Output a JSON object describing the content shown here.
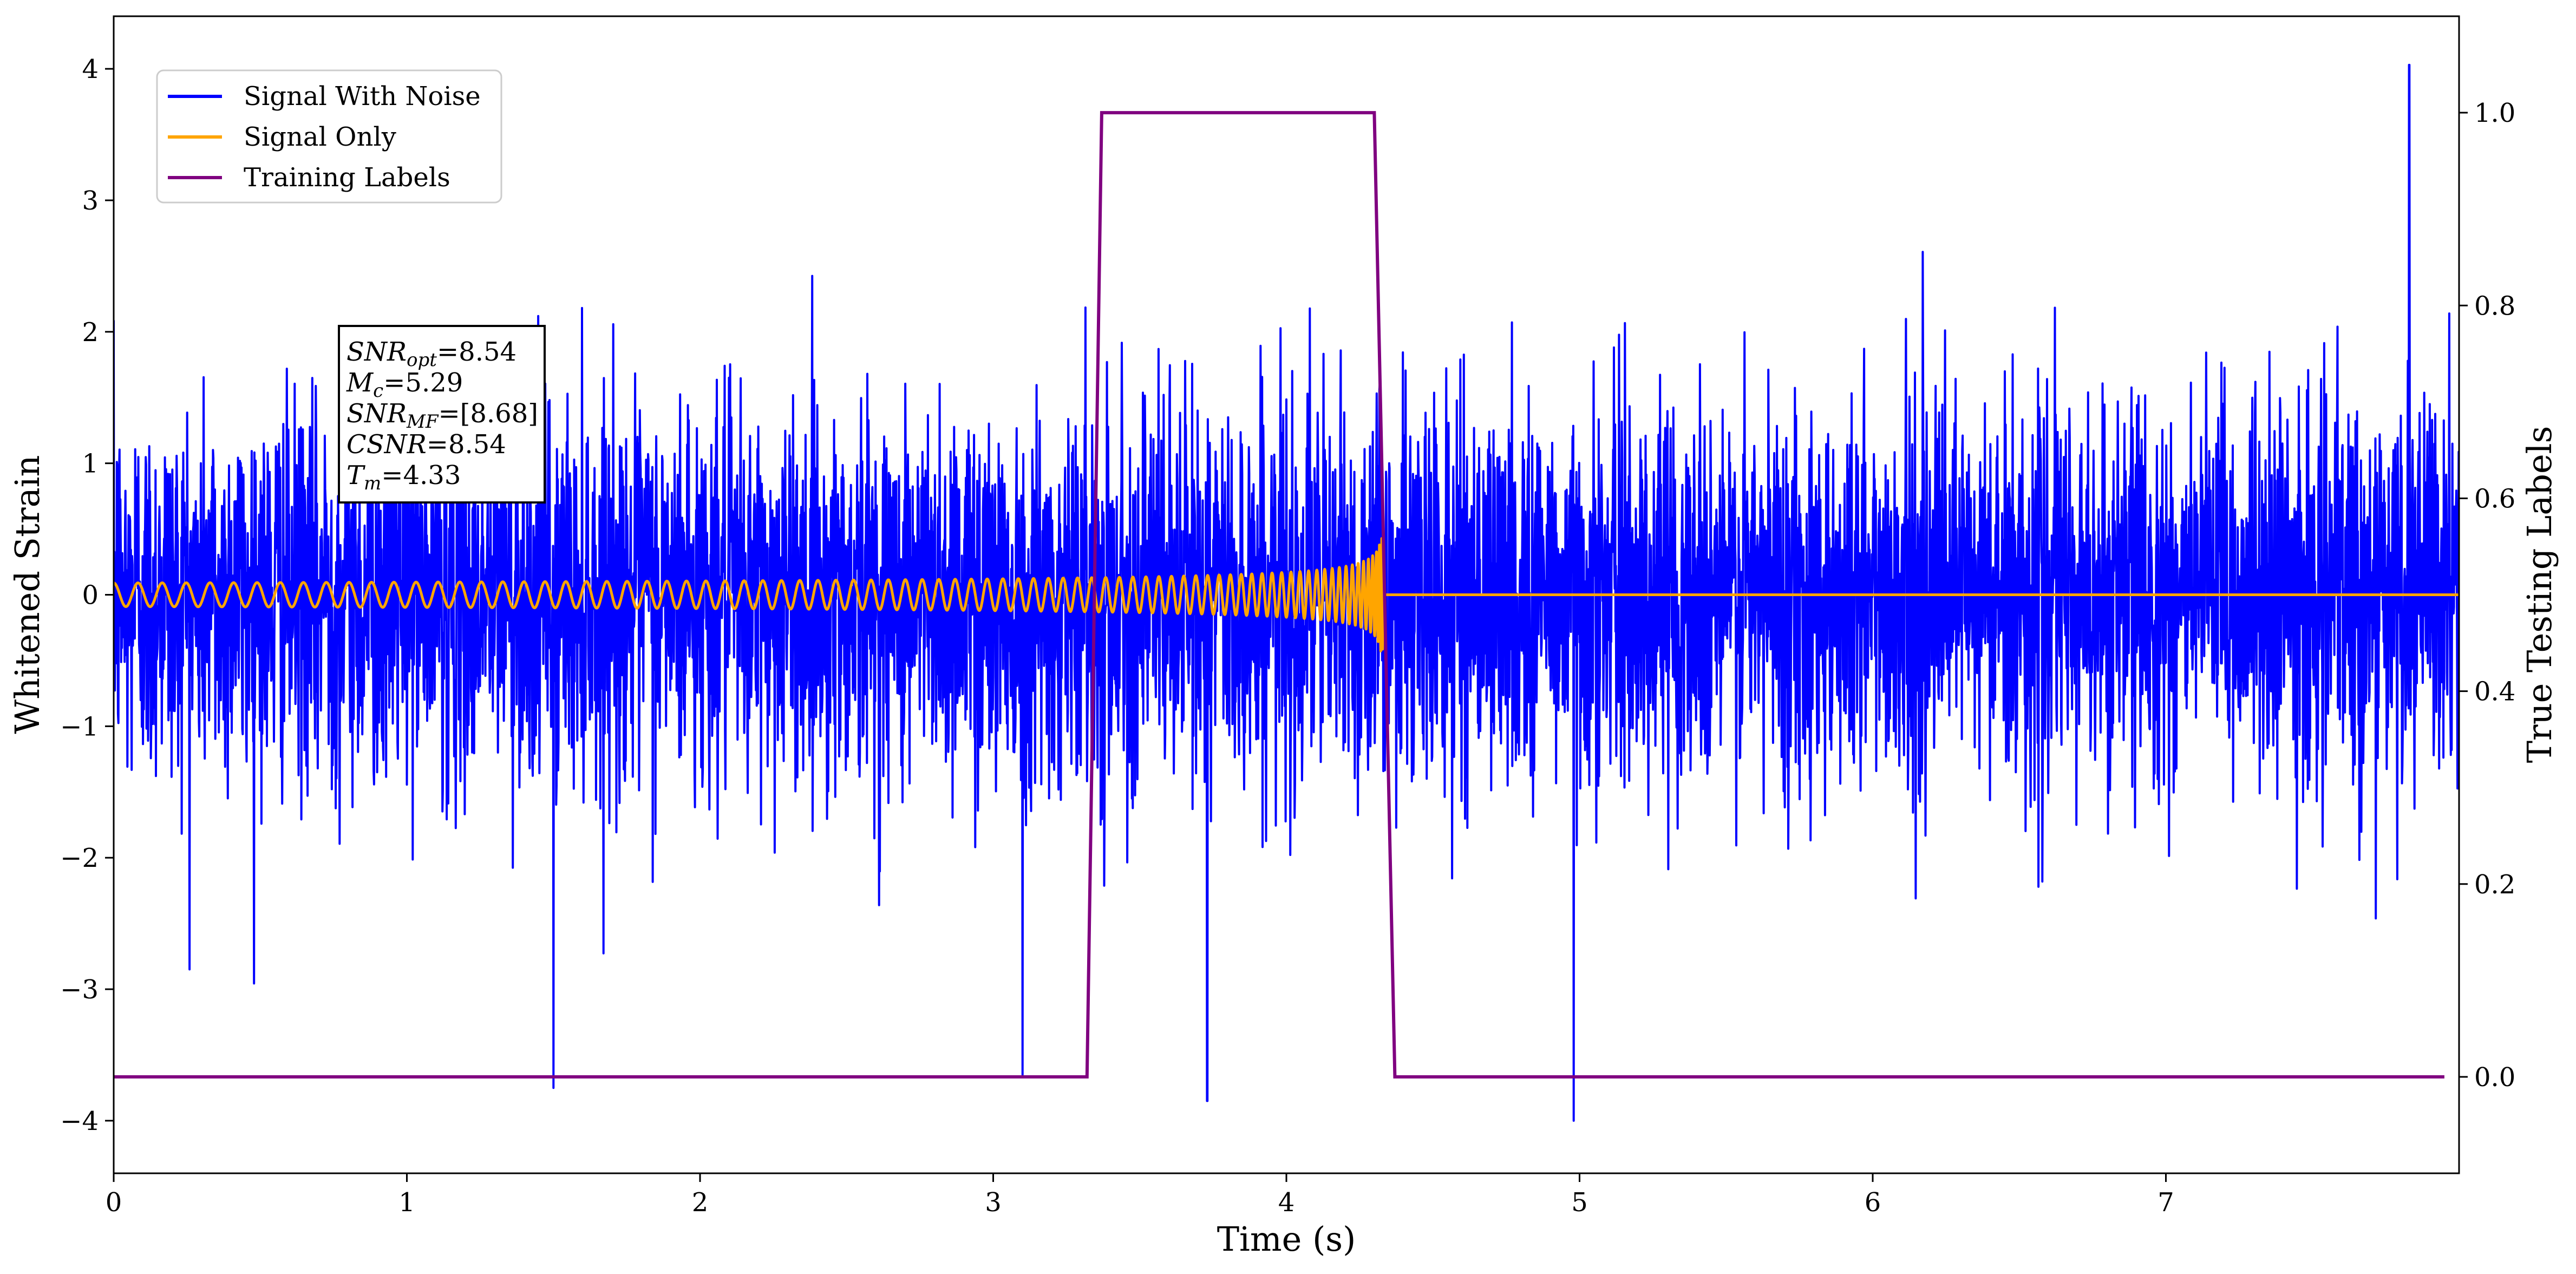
{
  "chart_data": {
    "type": "line",
    "xlabel": "Time (s)",
    "ylabel_left": "Whitened Strain",
    "ylabel_right": "True Testing Labels",
    "xlim": [
      0,
      8
    ],
    "ylim_left": [
      -4.4,
      4.4
    ],
    "ylim_right": [
      -0.1,
      1.1
    ],
    "x_ticks": [
      "0",
      "1",
      "2",
      "3",
      "4",
      "5",
      "6",
      "7"
    ],
    "y_left_ticks": [
      "−4",
      "−3",
      "−2",
      "−1",
      "0",
      "1",
      "2",
      "3",
      "4"
    ],
    "y_right_ticks": [
      "0.0",
      "0.2",
      "0.4",
      "0.6",
      "0.8",
      "1.0"
    ],
    "grid": false,
    "legend_position": "top-left",
    "series": [
      {
        "name": "Signal With Noise",
        "color": "#0000ff",
        "axis": "left",
        "description_values": {
          "noise_std": 0.72,
          "t_start": 0,
          "t_end": 8,
          "min": -4.0,
          "max": 4.0
        },
        "notable_points": [
          {
            "x": 1.5,
            "y": -3.75
          },
          {
            "x": 3.1,
            "y": -3.65
          },
          {
            "x": 3.73,
            "y": -3.85
          },
          {
            "x": 4.98,
            "y": -4.0
          },
          {
            "x": 7.83,
            "y": 4.03
          }
        ]
      },
      {
        "name": "Signal Only",
        "color": "#ffa500",
        "axis": "left",
        "values": {
          "type": "chirp",
          "t_start": 0,
          "t_merger": 4.33,
          "amplitude_start": 0.09,
          "amplitude_peak": 0.85,
          "frequency_start_hz": 12,
          "post_merger_value": 0
        }
      },
      {
        "name": "Training Labels",
        "color": "#800080",
        "axis": "right",
        "x": [
          0,
          3.32,
          3.37,
          4.3,
          4.37,
          7.95
        ],
        "y": [
          0,
          0,
          1,
          1,
          0,
          0
        ]
      }
    ],
    "annotation": {
      "lines": [
        {
          "base": "SNR",
          "sub": "opt",
          "value": "=8.54"
        },
        {
          "base": "M",
          "sub": "c",
          "value": "=5.29"
        },
        {
          "base": "SNR",
          "sub": "MF",
          "value": "=[8.68]"
        },
        {
          "base": "CSNR",
          "sub": "",
          "value": "=8.54"
        },
        {
          "base": "T",
          "sub": "m",
          "value": "=4.33"
        }
      ]
    }
  }
}
